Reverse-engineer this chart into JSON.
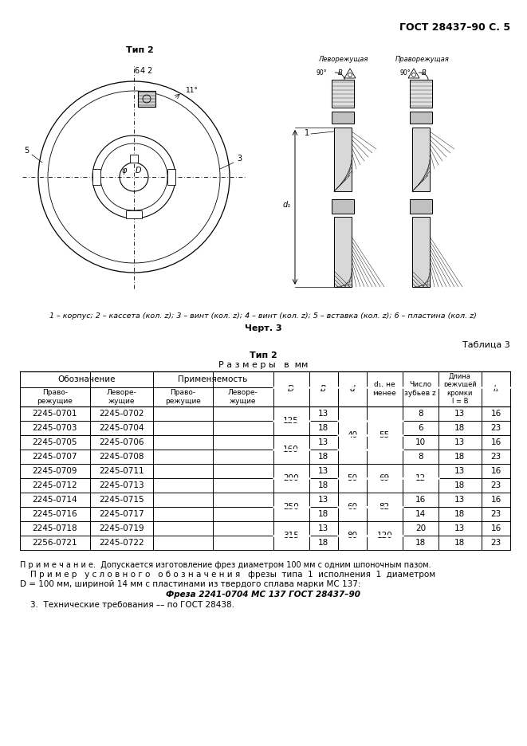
{
  "header": "ГОСТ 28437–90 С. 5",
  "diagram_label": "Тип 2",
  "caption": "1 – корпус; 2 – кассета (кол. z); 3 – винт (кол. z); 4 – винт (кол. z); 5 – вставка (кол. z); 6 – пластина (кол. z)",
  "chert": "Черт. 3",
  "table_label": "Таблица 3",
  "table_title1": "Тип 2",
  "table_title2": "Р а з м е р ы   в  мм",
  "rows": [
    [
      "2245-0701",
      "2245-0702",
      "125",
      "13",
      "8",
      "13",
      "16"
    ],
    [
      "2245-0703",
      "2245-0704",
      "",
      "18",
      "6",
      "18",
      "23"
    ],
    [
      "2245-0705",
      "2245-0706",
      "160",
      "13",
      "10",
      "13",
      "16"
    ],
    [
      "2245-0707",
      "2245-0708",
      "",
      "18",
      "8",
      "18",
      "23"
    ],
    [
      "2245-0709",
      "2245-0711",
      "200",
      "13",
      "12",
      "13",
      "16"
    ],
    [
      "2245-0712",
      "2245-0713",
      "",
      "18",
      "",
      "18",
      "23"
    ],
    [
      "2245-0714",
      "2245-0715",
      "250",
      "13",
      "16",
      "13",
      "16"
    ],
    [
      "2245-0716",
      "2245-0717",
      "",
      "18",
      "14",
      "18",
      "23"
    ],
    [
      "2245-0718",
      "2245-0719",
      "315",
      "13",
      "20",
      "13",
      "16"
    ],
    [
      "2256-0721",
      "2245-0722",
      "",
      "18",
      "18",
      "18",
      "23"
    ]
  ],
  "merge_D": [
    [
      0,
      1,
      "125"
    ],
    [
      2,
      3,
      "160"
    ],
    [
      4,
      5,
      "200"
    ],
    [
      6,
      7,
      "250"
    ],
    [
      8,
      9,
      "315"
    ]
  ],
  "merge_d": [
    [
      0,
      3,
      "40"
    ],
    [
      4,
      5,
      "50"
    ],
    [
      6,
      7,
      "60"
    ],
    [
      8,
      9,
      "80"
    ]
  ],
  "merge_d1": [
    [
      0,
      3,
      "55"
    ],
    [
      4,
      5,
      "69"
    ],
    [
      6,
      7,
      "82"
    ],
    [
      8,
      9,
      "120"
    ]
  ],
  "merge_z": [
    [
      4,
      5,
      "12"
    ]
  ],
  "indiv_z": {
    "0": "8",
    "1": "6",
    "2": "10",
    "3": "8",
    "6": "16",
    "7": "14",
    "8": "20",
    "9": "18"
  },
  "note1": "П р и м е ч а н и е.  Допускается изготовление фрез диаметром 100 мм с одним шпоночным пазом.",
  "note2a": "    П р и м е р   у с л о в н о г о   о б о з н а ч е н и я   фрезы  типа  1  исполнения  1  диаметром",
  "note2b": "D = 100 мм, шириной 14 мм с пластинами из твердого сплава марки МС 137:",
  "note2c": "Фреза 2241-0704 МС 137 ГОСТ 28437–90",
  "note3": "    3.  Технические требования –– по ГОСТ 28438."
}
